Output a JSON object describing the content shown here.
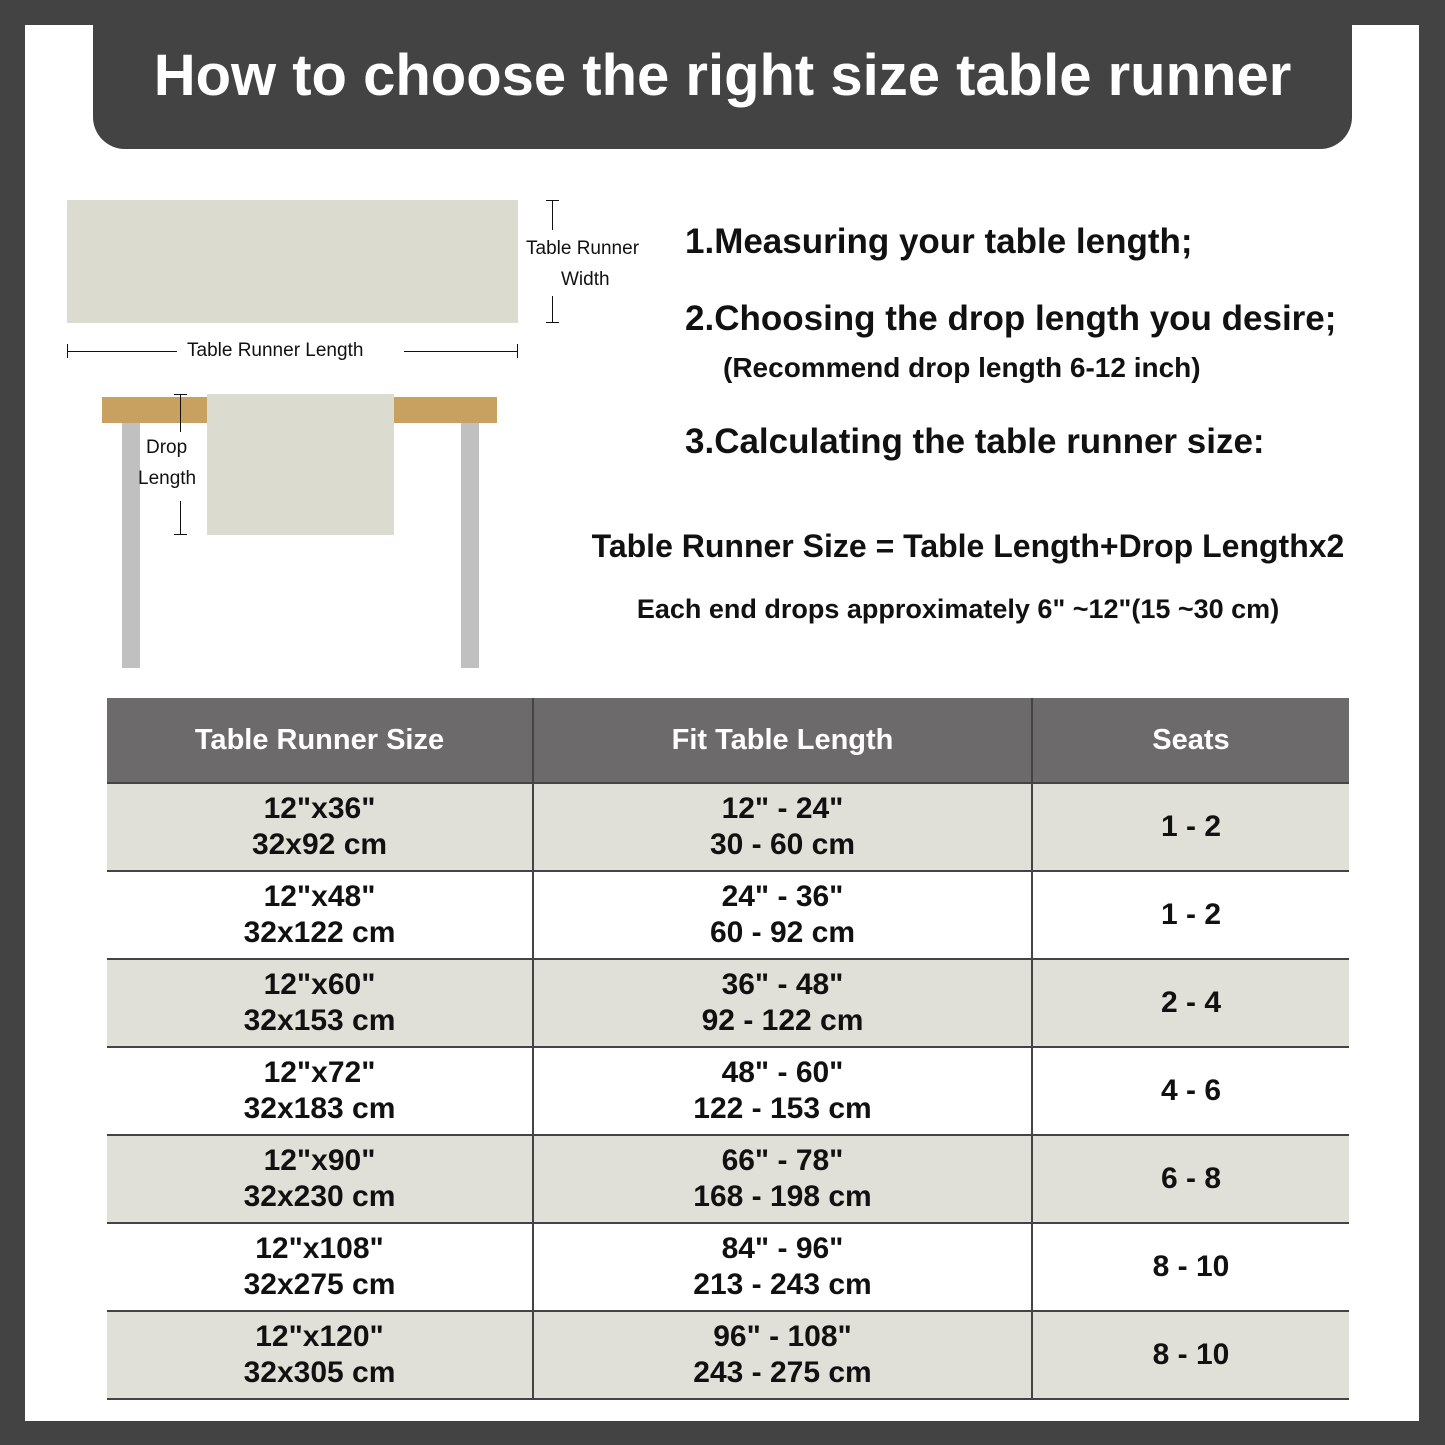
{
  "title": "How to choose the right size table runner",
  "diagram": {
    "width_label_1": "Table Runner",
    "width_label_2": "Width",
    "length_label": "Table Runner Length",
    "drop_label_1": "Drop",
    "drop_label_2": "Length",
    "colors": {
      "runner": "#dcdbcf",
      "tabletop": "#c8a060",
      "legs": "#c0c0c0"
    }
  },
  "steps": {
    "step1": "1.Measuring your table length;",
    "step2": "2.Choosing the drop length you desire;",
    "step2_note": "(Recommend drop length 6-12 inch)",
    "step3": "3.Calculating the table runner size:"
  },
  "formula": "Table Runner Size = Table Length+Drop Lengthx2",
  "drop_note": "Each end drops approximately 6\" ~12\"(15 ~30 cm)",
  "table": {
    "headers": [
      "Table Runner Size",
      "Fit Table Length",
      "Seats"
    ],
    "rows": [
      {
        "size_in": "12\"x36\"",
        "size_cm": "32x92 cm",
        "fit_in": "12\" - 24\"",
        "fit_cm": "30 - 60 cm",
        "seats": "1 - 2"
      },
      {
        "size_in": "12\"x48\"",
        "size_cm": "32x122 cm",
        "fit_in": "24\" - 36\"",
        "fit_cm": "60 - 92 cm",
        "seats": "1 - 2"
      },
      {
        "size_in": "12\"x60\"",
        "size_cm": "32x153 cm",
        "fit_in": "36\" - 48\"",
        "fit_cm": "92 - 122 cm",
        "seats": "2 - 4"
      },
      {
        "size_in": "12\"x72\"",
        "size_cm": "32x183 cm",
        "fit_in": "48\" - 60\"",
        "fit_cm": "122 - 153 cm",
        "seats": "4 - 6"
      },
      {
        "size_in": "12\"x90\"",
        "size_cm": "32x230 cm",
        "fit_in": "66\" - 78\"",
        "fit_cm": "168 - 198 cm",
        "seats": "6 - 8"
      },
      {
        "size_in": "12\"x108\"",
        "size_cm": "32x275 cm",
        "fit_in": "84\" - 96\"",
        "fit_cm": "213 - 243 cm",
        "seats": "8 - 10"
      },
      {
        "size_in": "12\"x120\"",
        "size_cm": "32x305 cm",
        "fit_in": "96\" - 108\"",
        "fit_cm": "243 - 275 cm",
        "seats": "8 - 10"
      }
    ]
  }
}
